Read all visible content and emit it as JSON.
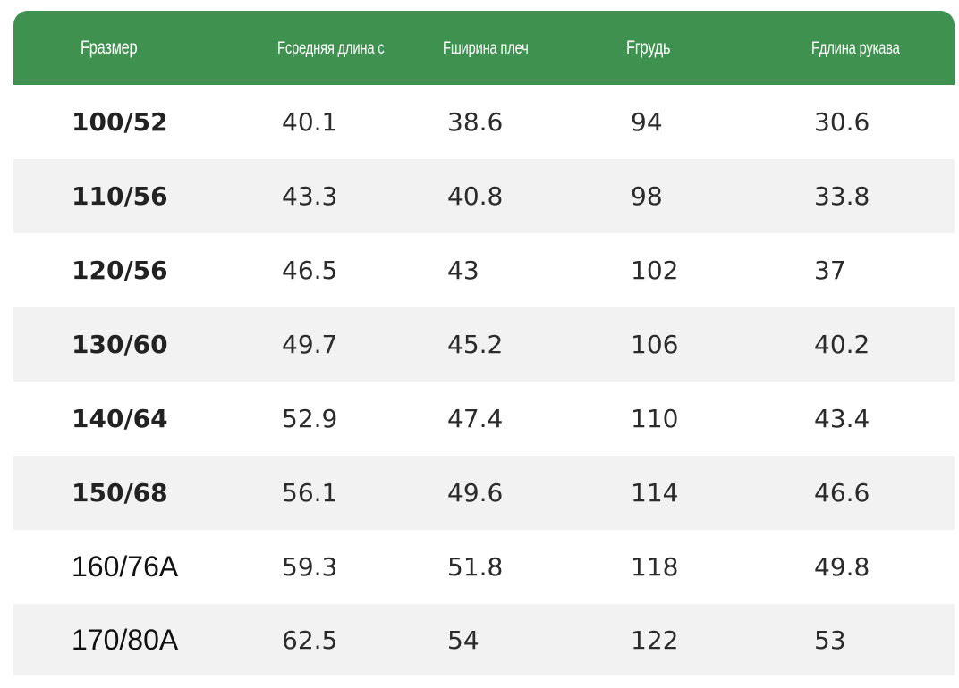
{
  "table": {
    "headers": [
      "Fразмер",
      "Fсредняя длина сзади",
      "Fширина плеч",
      "Fгрудь",
      "Fдлина рукава"
    ],
    "rows": [
      [
        "100/52",
        "40.1",
        "38.6",
        "94",
        "30.6"
      ],
      [
        "110/56",
        "43.3",
        "40.8",
        "98",
        "33.8"
      ],
      [
        "120/56",
        "46.5",
        "43",
        "102",
        "37"
      ],
      [
        "130/60",
        "49.7",
        "45.2",
        "106",
        "40.2"
      ],
      [
        "140/64",
        "52.9",
        "47.4",
        "110",
        "43.4"
      ],
      [
        "150/68",
        "56.1",
        "49.6",
        "114",
        "46.6"
      ],
      [
        "160/76A",
        "59.3",
        "51.8",
        "118",
        "49.8"
      ],
      [
        "170/80A",
        "62.5",
        "54",
        "122",
        "53"
      ]
    ]
  },
  "colors": {
    "header_background": "#3f9150",
    "header_text": "#ffffff",
    "row_alt_background": "#f2f2f2"
  }
}
